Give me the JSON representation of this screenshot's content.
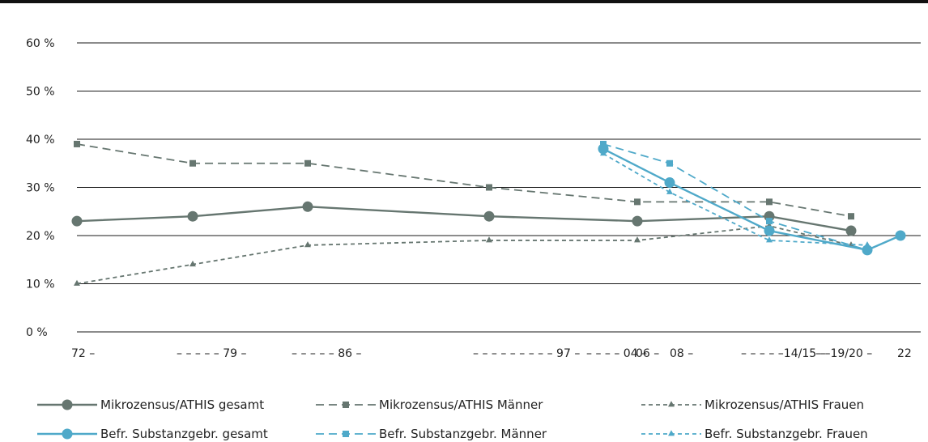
{
  "chart_data": {
    "type": "line",
    "title": "",
    "xlabel": "",
    "ylabel": "",
    "ylim": [
      0,
      60
    ],
    "y_ticks": [
      "0 %",
      "10 %",
      "20 %",
      "30 %",
      "40 %",
      "50 %",
      "60 %"
    ],
    "x_tick_labels": [
      "72 –",
      "– – – – – 79 –",
      "– – – – – 86 –",
      "– – – – – – – – – 97 –",
      "– – – – 04 –",
      "06 –",
      "08 –",
      "– – – – –14/15 –",
      "– –19/20 –",
      "22"
    ],
    "grid": "horizontal",
    "legend_position": "bottom",
    "series": [
      {
        "name": "Mikrozensus/ATHIS gesamt",
        "color": "#667670",
        "dash": "solid",
        "marker": "circle",
        "points": [
          [
            "72",
            23
          ],
          [
            "79",
            24
          ],
          [
            "86",
            26
          ],
          [
            "97",
            24
          ],
          [
            "06",
            23
          ],
          [
            "14/15",
            24
          ],
          [
            "19/20",
            21
          ]
        ]
      },
      {
        "name": "Mikrozensus/ATHIS Männer",
        "color": "#667670",
        "dash": "long",
        "marker": "square",
        "points": [
          [
            "72",
            39
          ],
          [
            "79",
            35
          ],
          [
            "86",
            35
          ],
          [
            "97",
            30
          ],
          [
            "06",
            27
          ],
          [
            "14/15",
            27
          ],
          [
            "19/20",
            24
          ]
        ]
      },
      {
        "name": "Mikrozensus/ATHIS Frauen",
        "color": "#667670",
        "dash": "short",
        "marker": "triangle",
        "points": [
          [
            "72",
            10
          ],
          [
            "79",
            14
          ],
          [
            "86",
            18
          ],
          [
            "97",
            19
          ],
          [
            "06",
            19
          ],
          [
            "14/15",
            22
          ],
          [
            "19/20",
            18
          ]
        ]
      },
      {
        "name": "Befr. Substanzgebr. gesamt",
        "color": "#4fa9c9",
        "dash": "solid",
        "marker": "circle",
        "points": [
          [
            "04",
            38
          ],
          [
            "08",
            31
          ],
          [
            "14/15",
            21
          ],
          [
            "20",
            17
          ],
          [
            "22",
            20
          ]
        ]
      },
      {
        "name": "Befr. Substanzgebr. Männer",
        "color": "#4fa9c9",
        "dash": "long",
        "marker": "square",
        "points": [
          [
            "04",
            39
          ],
          [
            "08",
            35
          ],
          [
            "14/15",
            23
          ],
          [
            "20",
            17
          ]
        ]
      },
      {
        "name": "Befr. Substanzgebr. Frauen",
        "color": "#4fa9c9",
        "dash": "short",
        "marker": "triangle",
        "points": [
          [
            "04",
            37
          ],
          [
            "08",
            29
          ],
          [
            "14/15",
            19
          ],
          [
            "20",
            18
          ]
        ]
      }
    ]
  }
}
